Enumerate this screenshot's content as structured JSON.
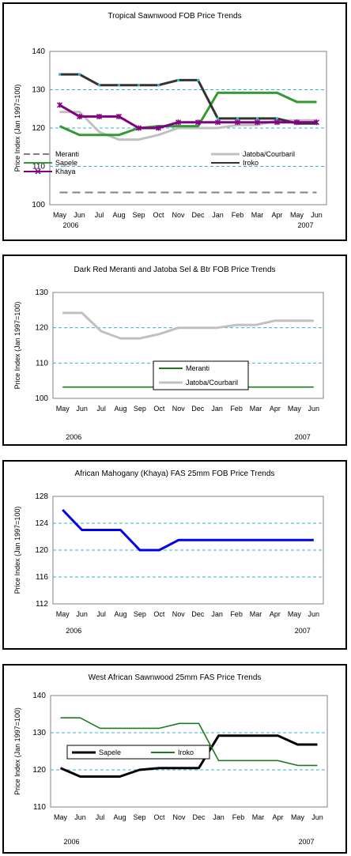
{
  "chart_data": [
    {
      "type": "line",
      "title": "Tropical Sawnwood FOB Price Trends",
      "ylabel": "Price Index (Jan 1997=100)",
      "ylim": [
        100,
        140
      ],
      "yticks": [
        100,
        110,
        120,
        130,
        140
      ],
      "categories": [
        "May",
        "Jun",
        "Jul",
        "Aug",
        "Sep",
        "Oct",
        "Nov",
        "Dec",
        "Jan",
        "Feb",
        "Mar",
        "Apr",
        "May",
        "Jun"
      ],
      "year_labels": [
        "2006",
        "2007"
      ],
      "grid": true,
      "legend": "center",
      "series": [
        {
          "name": "Meranti",
          "color": "#808080",
          "dash": "dashed",
          "marker": "none",
          "values": [
            103.2,
            103.2,
            103.2,
            103.2,
            103.2,
            103.2,
            103.2,
            103.2,
            103.2,
            103.2,
            103.2,
            103.2,
            103.2,
            103.2
          ]
        },
        {
          "name": "Jatoba/Courbaril",
          "color": "#c0c0c0",
          "dash": "solid",
          "marker": "none",
          "values": [
            124.2,
            124.2,
            119,
            117,
            117,
            118.2,
            120,
            120,
            120,
            120.8,
            120.8,
            122,
            122,
            122
          ]
        },
        {
          "name": "Sapele",
          "color": "#339933",
          "dash": "solid",
          "marker": "none",
          "values": [
            120.5,
            118.2,
            118.2,
            118.2,
            120,
            120.5,
            120.5,
            120.5,
            129.2,
            129.2,
            129.2,
            129.2,
            126.8,
            126.8
          ]
        },
        {
          "name": "Iroko",
          "color": "#333333",
          "dash": "solid",
          "marker": "dot",
          "values": [
            134,
            134,
            131.2,
            131.2,
            131.2,
            131.2,
            132.5,
            132.5,
            122.5,
            122.5,
            122.5,
            122.5,
            121.2,
            121.2
          ]
        },
        {
          "name": "Khaya",
          "color": "#800080",
          "dash": "solid",
          "marker": "x",
          "values": [
            126,
            123,
            123,
            123,
            120,
            120,
            121.5,
            121.5,
            121.5,
            121.5,
            121.5,
            121.5,
            121.5,
            121.5
          ]
        }
      ]
    },
    {
      "type": "line",
      "title": "Dark Red Meranti and Jatoba Sel & Btr FOB Price Trends",
      "ylabel": "Price Index (Jan 1997=100)",
      "ylim": [
        100,
        130
      ],
      "yticks": [
        100,
        110,
        120,
        130
      ],
      "categories": [
        "May",
        "Jun",
        "Jul",
        "Aug",
        "Sep",
        "Oct",
        "Nov",
        "Dec",
        "Jan",
        "Feb",
        "Mar",
        "Apr",
        "May",
        "Jun"
      ],
      "year_labels": [
        "2006",
        "2007"
      ],
      "grid": true,
      "legend": "center",
      "series": [
        {
          "name": "Meranti",
          "color": "#1e7a1e",
          "dash": "solid",
          "marker": "none",
          "values": [
            103.2,
            103.2,
            103.2,
            103.2,
            103.2,
            103.2,
            103.2,
            103.2,
            103.2,
            103.2,
            103.2,
            103.2,
            103.2,
            103.2
          ]
        },
        {
          "name": "Jatoba/Courbaril",
          "color": "#c0c0c0",
          "dash": "solid",
          "marker": "none",
          "values": [
            124.2,
            124.2,
            119,
            117,
            117,
            118.2,
            120,
            120,
            120,
            120.8,
            120.8,
            122,
            122,
            122
          ]
        }
      ]
    },
    {
      "type": "line",
      "title": "African Mahogany (Khaya) FAS 25mm FOB Price Trends",
      "ylabel": "Price Index (Jan 1997=100)",
      "ylim": [
        112,
        128
      ],
      "yticks": [
        112,
        116,
        120,
        124,
        128
      ],
      "categories": [
        "May",
        "Jun",
        "Jul",
        "Aug",
        "Sep",
        "Oct",
        "Nov",
        "Dec",
        "Jan",
        "Feb",
        "Mar",
        "Apr",
        "May",
        "Jun"
      ],
      "year_labels": [
        "2006",
        "2007"
      ],
      "grid": true,
      "legend": "none",
      "series": [
        {
          "color": "#0000ee",
          "dash": "solid",
          "marker": "none",
          "values": [
            126,
            123,
            123,
            123,
            120,
            120,
            121.5,
            121.5,
            121.5,
            121.5,
            121.5,
            121.5,
            121.5,
            121.5
          ]
        }
      ]
    },
    {
      "type": "line",
      "title": "West African Sawnwood 25mm FAS Price Trends",
      "ylabel": "Price Index (Jan 1997=100)",
      "ylim": [
        110,
        140
      ],
      "yticks": [
        110,
        120,
        130,
        140
      ],
      "categories": [
        "May",
        "Jun",
        "Jul",
        "Aug",
        "Sep",
        "Oct",
        "Nov",
        "Dec",
        "Jan",
        "Feb",
        "Mar",
        "Apr",
        "May",
        "Jun"
      ],
      "year_labels": [
        "2006",
        "2007"
      ],
      "grid": true,
      "legend": "left",
      "series": [
        {
          "name": "Sapele",
          "color": "#000000",
          "dash": "solid",
          "marker": "none",
          "values": [
            120.5,
            118.2,
            118.2,
            118.2,
            120,
            120.5,
            120.5,
            120.5,
            129.2,
            129.2,
            129.2,
            129.2,
            126.8,
            126.8
          ]
        },
        {
          "name": "Iroko",
          "color": "#1e7a1e",
          "dash": "solid",
          "marker": "none",
          "values": [
            134,
            134,
            131.2,
            131.2,
            131.2,
            131.2,
            132.5,
            132.5,
            122.5,
            122.5,
            122.5,
            122.5,
            121.2,
            121.2
          ]
        }
      ]
    }
  ]
}
